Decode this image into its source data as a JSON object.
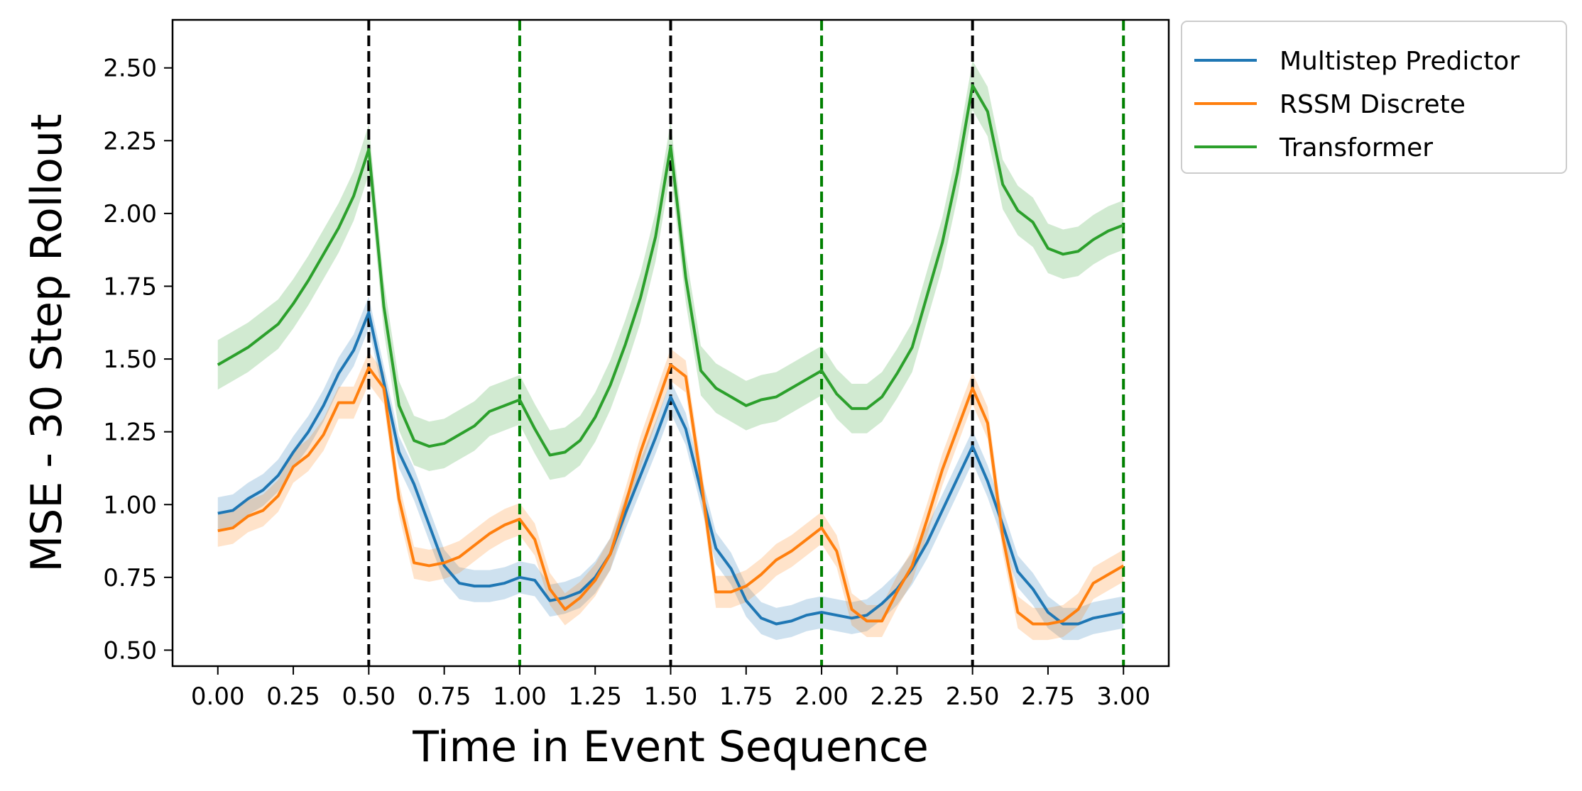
{
  "chart_data": {
    "type": "line",
    "title": "",
    "xlabel": "Time in Event Sequence",
    "ylabel": "MSE - 30 Step Rollout",
    "xlim": [
      -0.15,
      3.15
    ],
    "ylim": [
      0.445,
      2.665
    ],
    "xticks": [
      "0.00",
      "0.25",
      "0.50",
      "0.75",
      "1.00",
      "1.25",
      "1.50",
      "1.75",
      "2.00",
      "2.25",
      "2.50",
      "2.75",
      "3.00"
    ],
    "yticks": [
      "0.50",
      "0.75",
      "1.00",
      "1.25",
      "1.50",
      "1.75",
      "2.00",
      "2.25",
      "2.50"
    ],
    "grid": false,
    "legend_position": "outside-top-right",
    "vlines": [
      {
        "x": 0.5,
        "color": "#000000"
      },
      {
        "x": 1.0,
        "color": "#008000"
      },
      {
        "x": 1.5,
        "color": "#000000"
      },
      {
        "x": 2.0,
        "color": "#008000"
      },
      {
        "x": 2.5,
        "color": "#000000"
      },
      {
        "x": 3.0,
        "color": "#008000"
      }
    ],
    "x": [
      0.0,
      0.05,
      0.1,
      0.15,
      0.2,
      0.25,
      0.3,
      0.35,
      0.4,
      0.45,
      0.5,
      0.55,
      0.6,
      0.65,
      0.7,
      0.75,
      0.8,
      0.85,
      0.9,
      0.95,
      1.0,
      1.05,
      1.1,
      1.15,
      1.2,
      1.25,
      1.3,
      1.35,
      1.4,
      1.45,
      1.5,
      1.55,
      1.6,
      1.65,
      1.7,
      1.75,
      1.8,
      1.85,
      1.9,
      1.95,
      2.0,
      2.05,
      2.1,
      2.15,
      2.2,
      2.25,
      2.3,
      2.35,
      2.4,
      2.45,
      2.5,
      2.55,
      2.6,
      2.65,
      2.7,
      2.75,
      2.8,
      2.85,
      2.9,
      2.95,
      3.0
    ],
    "series": [
      {
        "name": "Multistep Predictor",
        "color": "#1f77b4",
        "band": 0.055,
        "values": [
          0.97,
          0.98,
          1.02,
          1.05,
          1.1,
          1.18,
          1.25,
          1.34,
          1.45,
          1.53,
          1.66,
          1.42,
          1.18,
          1.07,
          0.93,
          0.79,
          0.73,
          0.72,
          0.72,
          0.73,
          0.75,
          0.74,
          0.67,
          0.68,
          0.7,
          0.75,
          0.83,
          0.97,
          1.1,
          1.23,
          1.37,
          1.26,
          1.05,
          0.85,
          0.78,
          0.67,
          0.61,
          0.59,
          0.6,
          0.62,
          0.63,
          0.62,
          0.61,
          0.62,
          0.66,
          0.71,
          0.78,
          0.87,
          0.98,
          1.09,
          1.2,
          1.08,
          0.93,
          0.77,
          0.71,
          0.63,
          0.59,
          0.59,
          0.61,
          0.62,
          0.63
        ]
      },
      {
        "name": "RSSM Discrete",
        "color": "#ff7f0e",
        "band": 0.055,
        "values": [
          0.91,
          0.92,
          0.96,
          0.98,
          1.03,
          1.13,
          1.17,
          1.24,
          1.35,
          1.35,
          1.47,
          1.4,
          1.02,
          0.8,
          0.79,
          0.8,
          0.82,
          0.86,
          0.9,
          0.93,
          0.95,
          0.88,
          0.71,
          0.64,
          0.68,
          0.74,
          0.83,
          1.0,
          1.18,
          1.33,
          1.48,
          1.44,
          1.09,
          0.7,
          0.7,
          0.72,
          0.76,
          0.81,
          0.84,
          0.88,
          0.92,
          0.84,
          0.64,
          0.6,
          0.6,
          0.7,
          0.79,
          0.95,
          1.12,
          1.26,
          1.4,
          1.28,
          0.89,
          0.63,
          0.59,
          0.59,
          0.6,
          0.64,
          0.73,
          0.76,
          0.79
        ]
      },
      {
        "name": "Transformer",
        "color": "#2ca02c",
        "band": 0.085,
        "values": [
          1.48,
          1.51,
          1.54,
          1.58,
          1.62,
          1.69,
          1.77,
          1.86,
          1.95,
          2.06,
          2.22,
          1.68,
          1.34,
          1.22,
          1.2,
          1.21,
          1.24,
          1.27,
          1.32,
          1.34,
          1.36,
          1.26,
          1.17,
          1.18,
          1.22,
          1.3,
          1.41,
          1.55,
          1.71,
          1.92,
          2.23,
          1.78,
          1.46,
          1.4,
          1.37,
          1.34,
          1.36,
          1.37,
          1.4,
          1.43,
          1.46,
          1.38,
          1.33,
          1.33,
          1.37,
          1.45,
          1.54,
          1.72,
          1.9,
          2.14,
          2.44,
          2.35,
          2.1,
          2.01,
          1.97,
          1.88,
          1.86,
          1.87,
          1.91,
          1.94,
          1.96
        ]
      }
    ]
  }
}
